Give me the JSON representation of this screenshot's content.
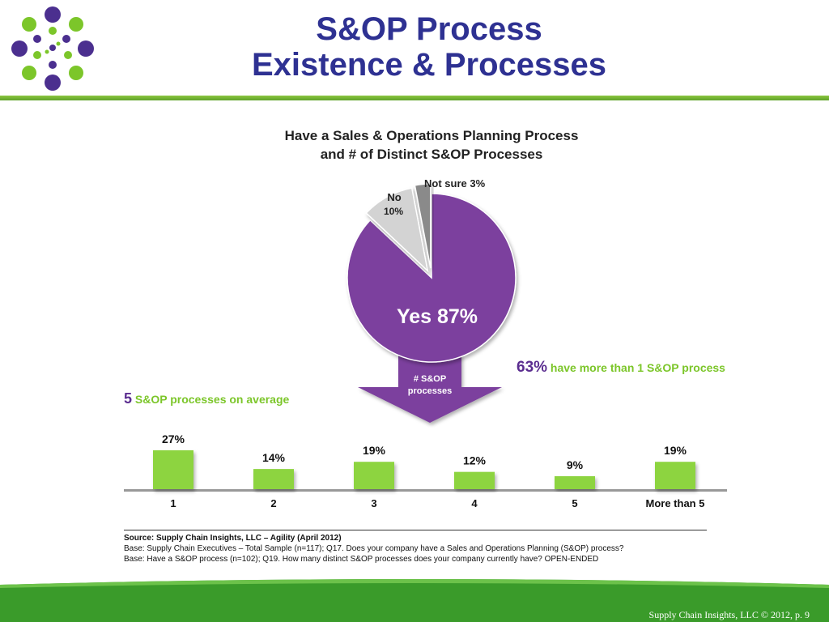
{
  "header": {
    "title_line1": "S&OP Process",
    "title_line2": "Existence & Processes"
  },
  "chart_data": [
    {
      "type": "pie",
      "title_line1": "Have a Sales & Operations Planning Process",
      "title_line2": "and # of Distinct S&OP Processes",
      "slices": [
        {
          "label": "Yes",
          "value": 87,
          "display": "Yes 87%",
          "color": "#7b3f9e"
        },
        {
          "label": "No",
          "value": 10,
          "display_line1": "No",
          "display_line2": "10%",
          "color": "#d3d3d3"
        },
        {
          "label": "Not sure",
          "value": 3,
          "display": "Not sure 3%",
          "color": "#8a8a8a"
        }
      ],
      "arrow_label_line1": "# S&OP",
      "arrow_label_line2": "processes"
    },
    {
      "type": "bar",
      "categories": [
        "1",
        "2",
        "3",
        "4",
        "5",
        "More than 5"
      ],
      "values": [
        27,
        14,
        19,
        12,
        9,
        19
      ],
      "value_labels": [
        "27%",
        "14%",
        "19%",
        "12%",
        "9%",
        "19%"
      ],
      "bar_color": "#8dd43f",
      "ylim": [
        0,
        30
      ]
    }
  ],
  "callouts": {
    "avg_big": "5",
    "avg_rest": "S&OP processes on average",
    "more_big": "63%",
    "more_rest": "have more than 1 S&OP process"
  },
  "source": {
    "line1": "Source: Supply Chain Insights, LLC – Agility (April 2012)",
    "line2": "Base: Supply Chain Executives – Total Sample (n=117); Q17. Does your company have a Sales and Operations Planning (S&OP) process?",
    "line3": "Base: Have a S&OP process (n=102); Q19. How many distinct S&OP processes does your company currently have? OPEN-ENDED"
  },
  "footer": {
    "text": "Supply Chain Insights, LLC © 2012, p. 9"
  },
  "colors": {
    "title": "#2e3192",
    "accent_green": "#7cc62a",
    "accent_purple": "#5b2d90",
    "footer_green": "#3a9b2a"
  }
}
